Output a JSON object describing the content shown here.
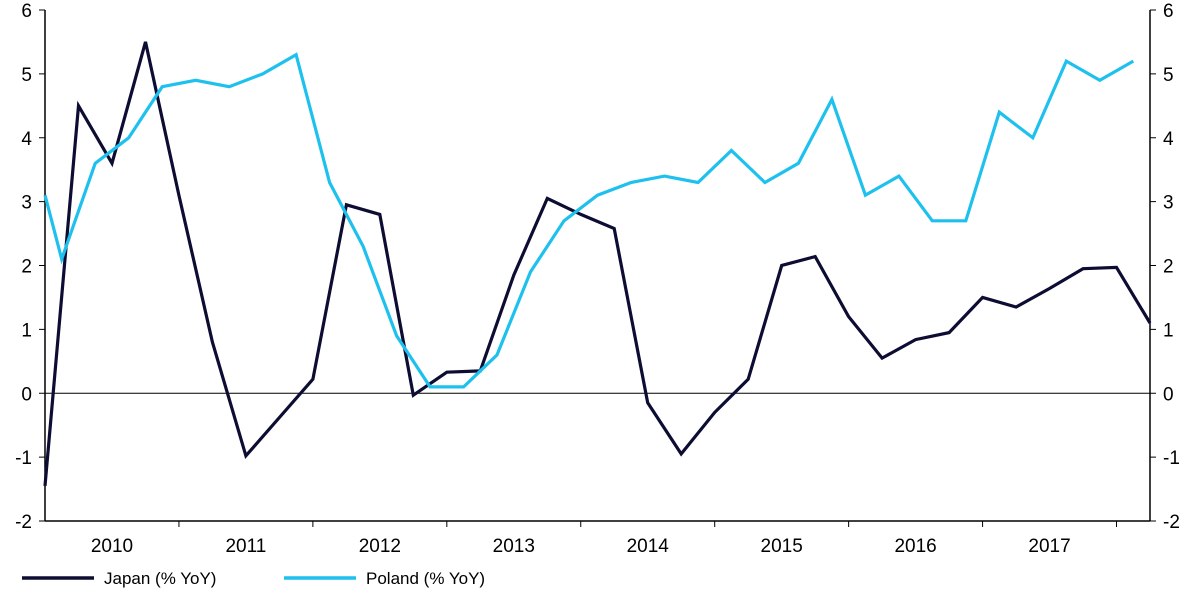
{
  "chart_data": {
    "type": "line",
    "title": "",
    "xlabel": "",
    "ylabel": "",
    "ylim": [
      -2,
      6
    ],
    "y2lim": [
      -2,
      6
    ],
    "yticks": [
      -2,
      -1,
      0,
      1,
      2,
      3,
      4,
      5,
      6
    ],
    "year_labels": [
      "2010",
      "2011",
      "2012",
      "2013",
      "2014",
      "2015",
      "2016",
      "2017"
    ],
    "x_start": 2009.5,
    "x_end": 2017.75,
    "grid": false,
    "zero_line": true,
    "legend_position": "bottom-left",
    "colors": {
      "Japan (% YoY)": "#0d0d33",
      "Poland (% YoY)": "#1ec1ee"
    },
    "series": [
      {
        "name": "Japan (% YoY)",
        "x": [
          2009.5,
          2009.75,
          2010.0,
          2010.25,
          2010.5,
          2010.75,
          2011.0,
          2011.25,
          2011.5,
          2011.75,
          2012.0,
          2012.25,
          2012.5,
          2012.75,
          2013.0,
          2013.25,
          2013.5,
          2013.75,
          2014.0,
          2014.25,
          2014.5,
          2014.75,
          2015.0,
          2015.25,
          2015.5,
          2015.75,
          2016.0,
          2016.25,
          2016.5,
          2016.75,
          2017.0,
          2017.25,
          2017.5,
          2017.75
        ],
        "values": [
          -1.45,
          4.5,
          3.6,
          5.5,
          3.1,
          0.8,
          -0.98,
          -0.38,
          0.22,
          2.95,
          2.8,
          -0.03,
          0.33,
          0.35,
          1.85,
          3.05,
          2.8,
          2.58,
          -0.15,
          -0.95,
          -0.3,
          0.22,
          2.0,
          2.14,
          1.2,
          0.55,
          0.84,
          0.95,
          1.5,
          1.35,
          1.64,
          1.95,
          1.97,
          1.1
        ]
      },
      {
        "name": "Poland (% YoY)",
        "x": [
          2009.5,
          2009.625,
          2009.875,
          2010.125,
          2010.375,
          2010.625,
          2010.875,
          2011.125,
          2011.375,
          2011.625,
          2011.875,
          2012.125,
          2012.375,
          2012.625,
          2012.875,
          2013.125,
          2013.375,
          2013.625,
          2013.875,
          2014.125,
          2014.375,
          2014.625,
          2014.875,
          2015.125,
          2015.375,
          2015.625,
          2015.875,
          2016.125,
          2016.375,
          2016.625,
          2016.875,
          2017.125,
          2017.375,
          2017.625
        ],
        "values": [
          3.1,
          2.1,
          3.6,
          4.0,
          4.8,
          4.9,
          4.8,
          5.0,
          5.3,
          3.3,
          2.3,
          0.9,
          0.1,
          0.1,
          0.6,
          1.9,
          2.7,
          3.1,
          3.3,
          3.4,
          3.3,
          3.8,
          3.3,
          3.6,
          4.6,
          3.1,
          3.4,
          2.7,
          2.7,
          4.4,
          4.0,
          5.2,
          4.9,
          5.2
        ]
      }
    ]
  }
}
